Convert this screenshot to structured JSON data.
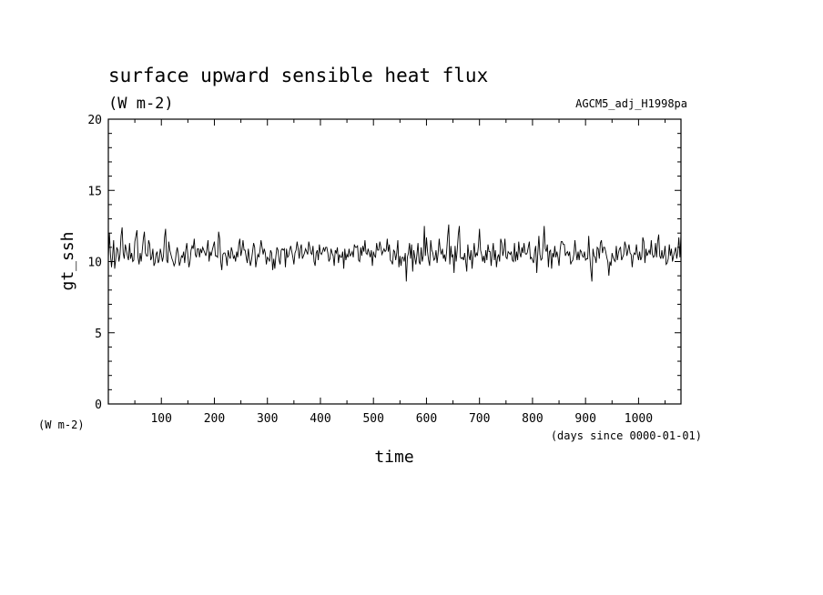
{
  "chart_data": {
    "type": "line",
    "title": "surface upward sensible heat flux",
    "subtitle_units": "(W m-2)",
    "dataset_label": "AGCM5_adj_H1998pa",
    "xlabel": "time",
    "xunits": "(days since 0000-01-01)",
    "ylabel": "gt_ssh",
    "yunits": "(W m-2)",
    "xlim": [
      0,
      1080
    ],
    "ylim": [
      0,
      20
    ],
    "x_ticks": [
      100,
      200,
      300,
      400,
      500,
      600,
      700,
      800,
      900,
      1000
    ],
    "y_ticks": [
      0,
      5,
      10,
      15,
      20
    ],
    "grid": false,
    "legend": "none",
    "x_step_days": 2,
    "series": [
      {
        "values": [
          10.2,
          12.0,
          10.5,
          9.6,
          10.4,
          11.5,
          9.5,
          10.2,
          11.0,
          10.8,
          10.0,
          10.5,
          11.8,
          12.4,
          10.6,
          10.2,
          11.2,
          10.8,
          10.4,
          10.1,
          11.3,
          10.2,
          10.6,
          10.0,
          10.1,
          11.4,
          11.8,
          12.2,
          10.3,
          9.8,
          10.6,
          10.0,
          10.8,
          11.6,
          12.1,
          10.6,
          10.4,
          10.4,
          11.5,
          11.2,
          10.1,
          10.3,
          10.9,
          9.7,
          9.9,
          10.5,
          10.7,
          9.9,
          10.1,
          10.9,
          10.5,
          10.0,
          10.4,
          11.7,
          12.3,
          10.1,
          9.9,
          11.4,
          10.8,
          10.5,
          10.2,
          10.0,
          9.7,
          9.9,
          10.6,
          11.0,
          10.5,
          9.7,
          10.0,
          10.4,
          10.3,
          10.7,
          9.9,
          10.8,
          11.3,
          10.4,
          9.6,
          10.0,
          10.8,
          11.1,
          10.9,
          11.6,
          10.5,
          10.3,
          10.9,
          10.9,
          10.3,
          10.9,
          10.6,
          11.0,
          10.8,
          10.6,
          10.4,
          10.9,
          11.5,
          10.0,
          10.7,
          10.4,
          10.8,
          11.1,
          11.4,
          10.4,
          10.4,
          10.3,
          12.1,
          11.6,
          10.0,
          9.4,
          10.5,
          10.6,
          10.6,
          10.3,
          9.7,
          10.8,
          10.4,
          10.2,
          11.0,
          10.7,
          10.2,
          10.4,
          10.0,
          10.7,
          10.3,
          11.2,
          11.6,
          10.4,
          10.8,
          11.5,
          10.8,
          10.8,
          10.3,
          9.9,
          10.9,
          10.2,
          9.7,
          10.1,
          10.7,
          11.3,
          11.0,
          9.6,
          10.1,
          10.5,
          10.3,
          10.8,
          11.5,
          11.0,
          10.5,
          10.9,
          10.6,
          9.8,
          10.3,
          10.2,
          10.0,
          10.8,
          10.6,
          9.4,
          10.2,
          9.5,
          10.4,
          11.0,
          10.8,
          10.1,
          9.8,
          10.8,
          10.9,
          10.8,
          10.9,
          9.6,
          10.9,
          10.3,
          10.4,
          10.8,
          11.1,
          10.7,
          10.3,
          9.8,
          10.6,
          10.8,
          11.4,
          10.9,
          10.2,
          10.9,
          11.2,
          10.2,
          10.4,
          10.6,
          10.9,
          10.7,
          10.5,
          11.4,
          11.0,
          10.6,
          10.5,
          11.1,
          10.0,
          9.7,
          10.6,
          10.8,
          10.1,
          11.2,
          10.6,
          10.5,
          10.7,
          11.0,
          10.7,
          11.0,
          11.0,
          10.6,
          10.0,
          10.2,
          10.9,
          10.6,
          10.4,
          9.7,
          10.8,
          10.6,
          11.0,
          9.9,
          10.5,
          10.3,
          10.3,
          10.7,
          9.5,
          10.9,
          10.1,
          10.5,
          10.3,
          10.9,
          10.4,
          10.5,
          10.7,
          10.3,
          11.2,
          11.0,
          11.0,
          11.1,
          10.1,
          10.0,
          11.0,
          10.4,
          11.1,
          10.7,
          11.5,
          10.6,
          10.5,
          10.9,
          10.6,
          10.3,
          10.8,
          9.7,
          10.7,
          10.4,
          10.3,
          11.3,
          10.8,
          10.8,
          11.4,
          11.0,
          10.5,
          10.7,
          10.9,
          10.7,
          10.8,
          11.6,
          10.7,
          11.2,
          10.1,
          10.0,
          9.8,
          10.8,
          10.7,
          10.1,
          10.6,
          11.5,
          9.6,
          10.4,
          9.7,
          10.3,
          10.3,
          10.0,
          10.6,
          8.6,
          10.3,
          10.6,
          11.3,
          10.2,
          11.2,
          9.3,
          10.8,
          10.3,
          9.8,
          10.5,
          11.3,
          10.0,
          9.8,
          11.0,
          10.0,
          10.4,
          12.5,
          10.4,
          11.7,
          10.7,
          10.1,
          9.7,
          11.5,
          10.8,
          10.6,
          10.1,
          10.2,
          10.8,
          9.9,
          10.6,
          11.6,
          10.8,
          10.5,
          10.9,
          10.2,
          10.5,
          10.0,
          10.7,
          11.8,
          12.6,
          9.8,
          11.1,
          10.3,
          10.5,
          9.2,
          11.1,
          10.0,
          10.8,
          11.9,
          12.5,
          10.3,
          10.2,
          10.3,
          10.1,
          10.6,
          10.0,
          9.3,
          11.2,
          10.4,
          10.1,
          10.8,
          9.5,
          10.4,
          11.3,
          10.3,
          10.6,
          10.4,
          11.1,
          12.3,
          10.8,
          10.5,
          10.0,
          10.4,
          9.9,
          10.8,
          10.1,
          11.2,
          10.7,
          10.7,
          9.7,
          10.6,
          11.3,
          10.1,
          10.8,
          9.6,
          10.3,
          10.5,
          10.0,
          11.6,
          11.3,
          10.4,
          10.8,
          11.6,
          10.3,
          10.2,
          10.7,
          10.6,
          10.5,
          10.7,
          10.1,
          10.0,
          11.3,
          10.0,
          10.7,
          10.1,
          11.4,
          10.6,
          10.3,
          11.0,
          10.6,
          11.3,
          10.6,
          10.5,
          10.6,
          11.0,
          11.4,
          10.2,
          10.3,
          10.1,
          9.9,
          10.7,
          11.1,
          9.2,
          10.6,
          11.8,
          10.5,
          10.1,
          10.2,
          11.2,
          12.5,
          10.9,
          10.7,
          11.2,
          9.6,
          10.7,
          10.8,
          9.5,
          10.6,
          10.3,
          11.1,
          10.3,
          10.7,
          10.3,
          9.7,
          10.8,
          11.4,
          11.4,
          11.2,
          11.2,
          10.4,
          10.6,
          10.7,
          10.4,
          10.7,
          9.8,
          10.0,
          10.1,
          10.5,
          11.5,
          10.7,
          10.1,
          10.7,
          10.1,
          10.8,
          10.7,
          10.4,
          10.3,
          10.7,
          10.1,
          10.2,
          10.2,
          11.8,
          10.4,
          9.4,
          8.6,
          10.9,
          10.4,
          10.3,
          9.9,
          11.0,
          10.9,
          10.2,
          11.3,
          11.5,
          10.6,
          11.0,
          11.0,
          10.7,
          10.3,
          10.0,
          9.0,
          10.0,
          9.7,
          10.6,
          10.3,
          10.1,
          10.0,
          11.1,
          10.1,
          10.6,
          10.9,
          11.0,
          10.1,
          10.3,
          10.5,
          11.4,
          11.1,
          10.4,
          10.8,
          11.2,
          10.6,
          10.5,
          9.6,
          10.4,
          10.6,
          10.5,
          11.2,
          10.5,
          10.1,
          10.7,
          10.1,
          10.3,
          11.7,
          11.4,
          9.9,
          10.9,
          10.4,
          10.6,
          10.8,
          10.5,
          11.5,
          10.5,
          10.3,
          10.4,
          11.3,
          10.3,
          11.4,
          11.9,
          10.4,
          10.2,
          10.8,
          10.2,
          10.5,
          11.1,
          9.8,
          9.9,
          10.2,
          11.2,
          10.4,
          10.9,
          10.0,
          10.4,
          10.7,
          11.0,
          10.2,
          10.7,
          11.7,
          10.3,
          11.9,
          10.9,
          10.3,
          11.3,
          10.1,
          10.5,
          10.8,
          11.2,
          10.9,
          10.3,
          10.4,
          9.9,
          10.8,
          11.6,
          9.7,
          10.7,
          10.2,
          10.7,
          10.9,
          10.4,
          10.4,
          9.7,
          10.5,
          9.6
        ]
      }
    ]
  }
}
